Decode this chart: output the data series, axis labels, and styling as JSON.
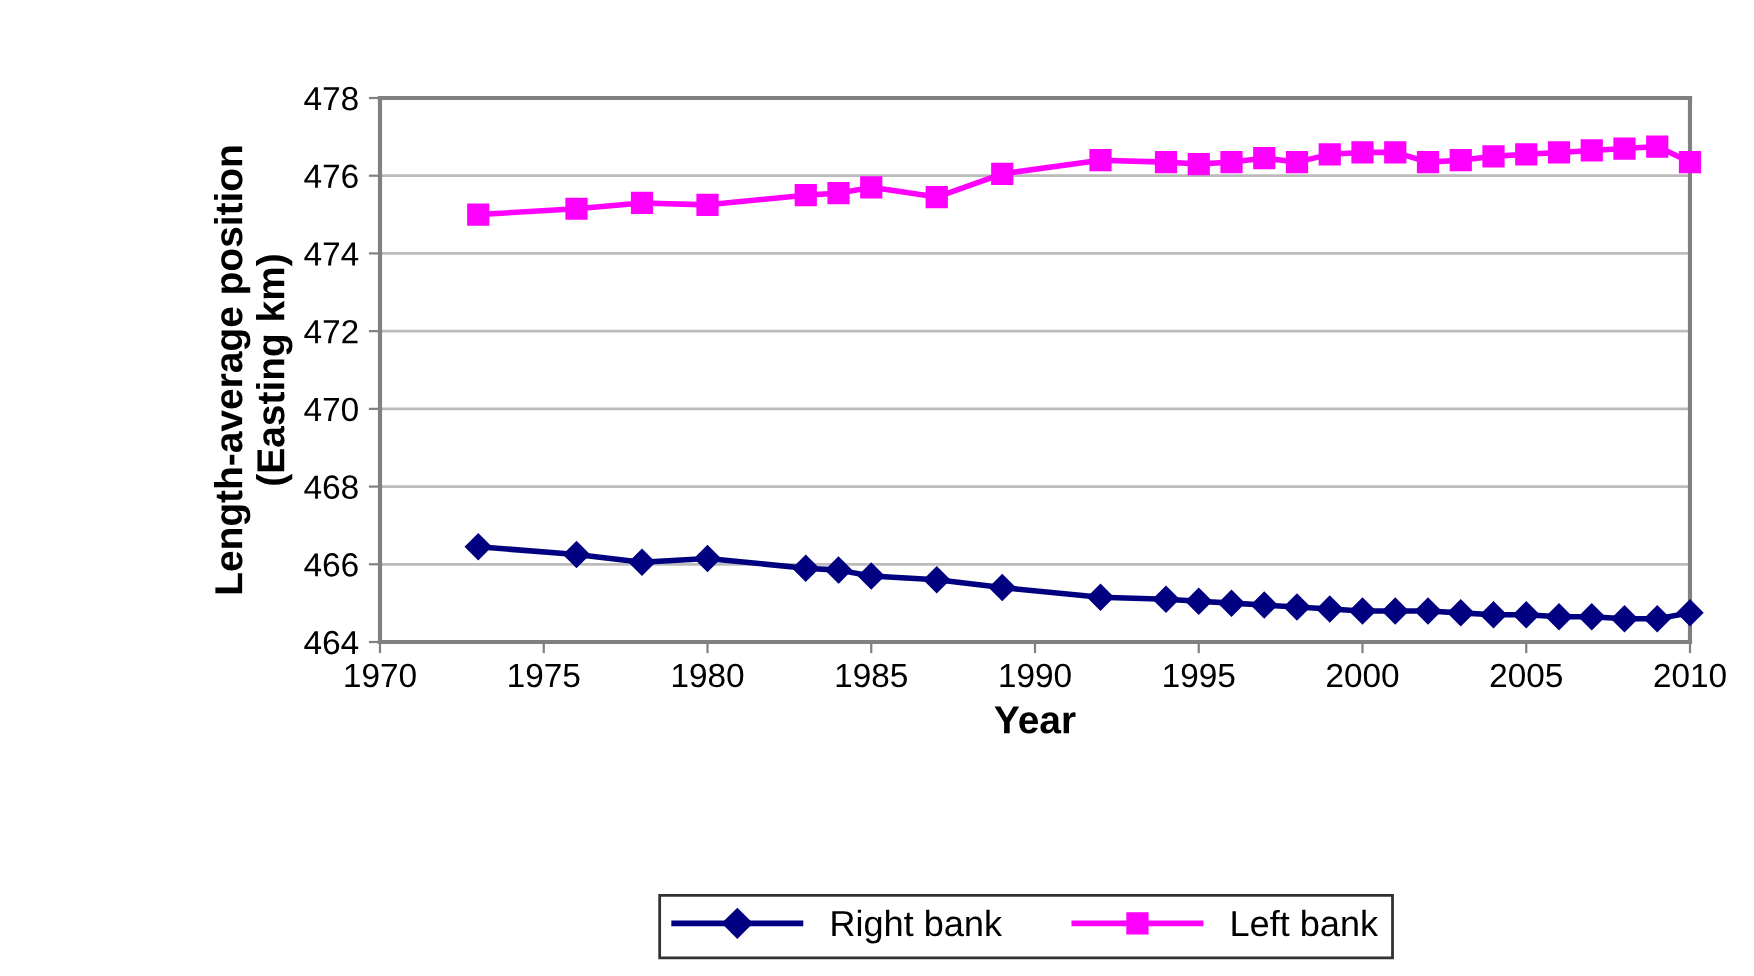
{
  "chart_data": {
    "type": "line",
    "xlabel": "Year",
    "ylabel": "Length-average position\n(Easting km)",
    "x": [
      1973,
      1976,
      1978,
      1980,
      1983,
      1984,
      1985,
      1987,
      1989,
      1992,
      1994,
      1995,
      1996,
      1997,
      1998,
      1999,
      2000,
      2001,
      2002,
      2003,
      2004,
      2005,
      2006,
      2007,
      2008,
      2009,
      2010
    ],
    "series": [
      {
        "name": "Right bank",
        "color": "#000080",
        "marker": "diamond",
        "values": [
          466.45,
          466.25,
          466.05,
          466.15,
          465.9,
          465.85,
          465.7,
          465.6,
          465.4,
          465.15,
          465.1,
          465.05,
          465.0,
          464.95,
          464.9,
          464.85,
          464.8,
          464.8,
          464.8,
          464.75,
          464.7,
          464.7,
          464.65,
          464.65,
          464.6,
          464.6,
          464.75
        ]
      },
      {
        "name": "Left bank",
        "color": "#ff00ff",
        "marker": "square",
        "values": [
          475.0,
          475.15,
          475.3,
          475.25,
          475.5,
          475.55,
          475.7,
          475.45,
          476.05,
          476.4,
          476.35,
          476.3,
          476.35,
          476.45,
          476.35,
          476.55,
          476.6,
          476.6,
          476.35,
          476.4,
          476.5,
          476.55,
          476.6,
          476.65,
          476.7,
          476.75,
          476.35
        ]
      }
    ],
    "xlim": [
      1970,
      2010
    ],
    "xticks": [
      1970,
      1975,
      1980,
      1985,
      1990,
      1995,
      2000,
      2005,
      2010
    ],
    "ylim": [
      464,
      478
    ],
    "yticks": [
      464,
      466,
      468,
      470,
      472,
      474,
      476,
      478
    ],
    "grid": "y",
    "legend": "bottom"
  }
}
